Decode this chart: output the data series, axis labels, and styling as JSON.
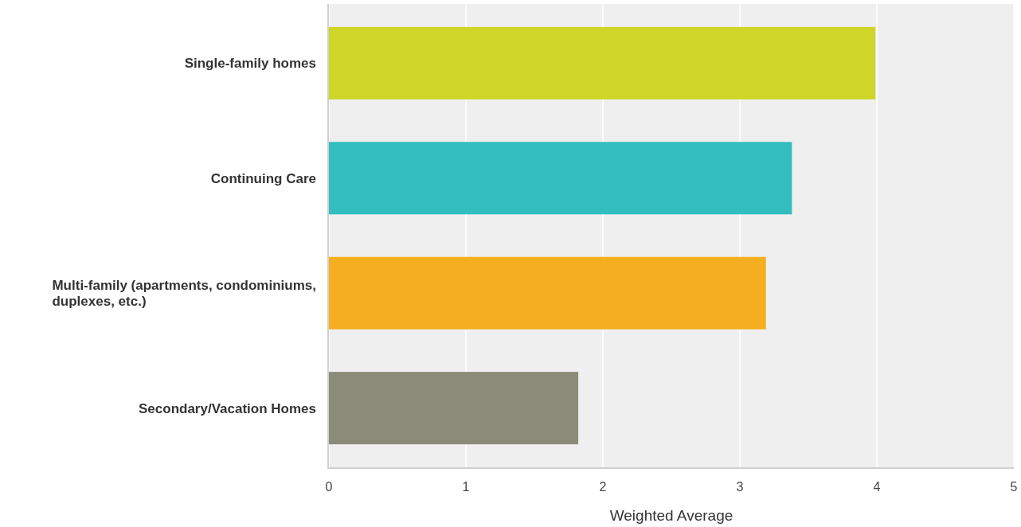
{
  "chart_data": {
    "type": "bar",
    "orientation": "horizontal",
    "xlabel": "Weighted Average",
    "categories": [
      "Single-family homes",
      "Continuing Care",
      "Multi-family (apartments, condominiums, duplexes, etc.)",
      "Secondary/Vacation Homes"
    ],
    "values": [
      3.99,
      3.38,
      3.19,
      1.82
    ],
    "colors": [
      "#d0d628",
      "#33bdbf",
      "#f5ae1f",
      "#8a8b79"
    ],
    "xlim": [
      0,
      5
    ],
    "xticks": [
      0,
      1,
      2,
      3,
      4,
      5
    ],
    "grid": "x"
  }
}
